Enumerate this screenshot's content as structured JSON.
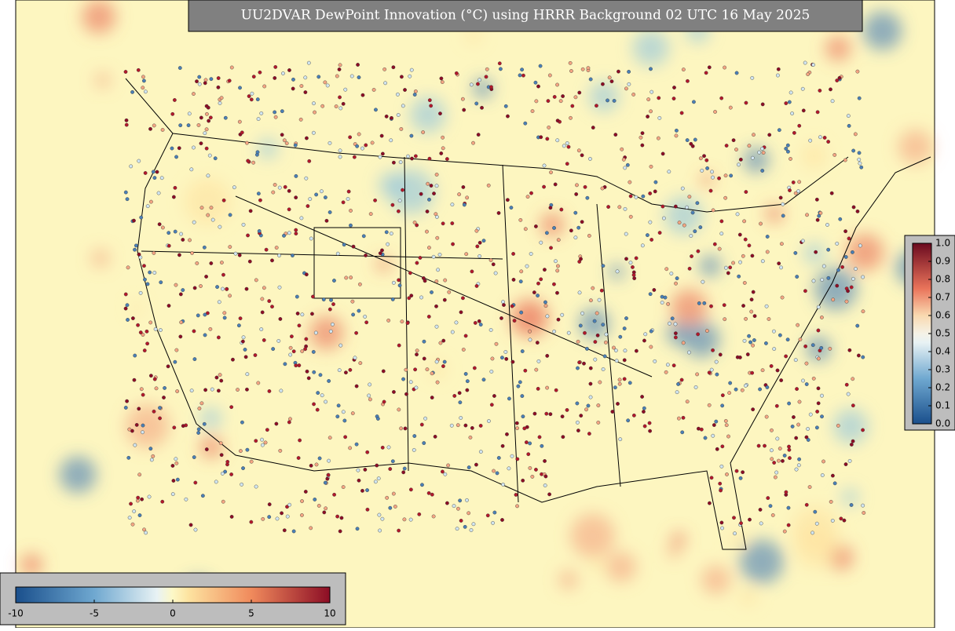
{
  "title": "UU2DVAR DewPoint Innovation (°C) using HRRR Background 02 UTC 16 May 2025",
  "innovation_colorbar": {
    "ticks": [
      -10,
      -5,
      0,
      5,
      10
    ]
  },
  "weight_colorbar": {
    "ticks": [
      {
        "value": 0,
        "label": "0.0"
      },
      {
        "value": 0.1,
        "label": "0.1"
      },
      {
        "value": 0.2,
        "label": "0.2"
      },
      {
        "value": 0.3,
        "label": "0.3"
      },
      {
        "value": 0.4,
        "label": "0.4"
      },
      {
        "value": 0.5,
        "label": "0.5"
      },
      {
        "value": 0.6,
        "label": "0.6"
      },
      {
        "value": 0.7,
        "label": "0.7"
      },
      {
        "value": 0.8,
        "label": "0.8"
      },
      {
        "value": 0.9,
        "label": "0.9"
      },
      {
        "value": 1,
        "label": "1.0"
      }
    ]
  }
}
